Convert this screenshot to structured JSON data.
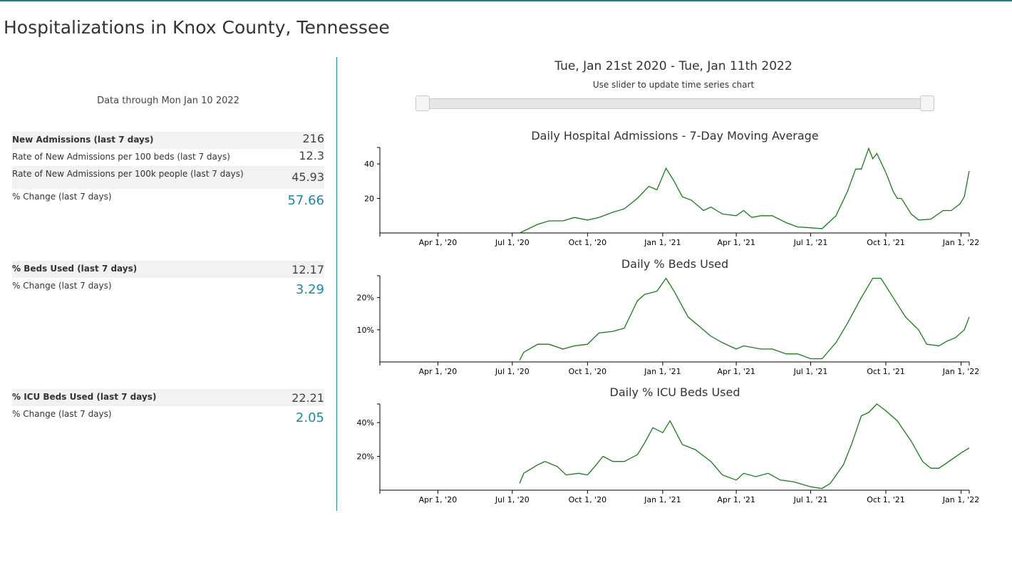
{
  "title": "Hospitalizations in Knox County, Tennessee",
  "data_through": "Data through Mon Jan 10 2022",
  "admissions": {
    "rows": [
      {
        "label": "New Admissions (last 7 days)",
        "value": "216"
      },
      {
        "label": "Rate of New Admissions per 100 beds (last 7 days)",
        "value": "12.3"
      },
      {
        "label": "Rate of New Admissions per 100k people (last 7 days)",
        "value": "45.93"
      },
      {
        "label": "% Change (last 7 days)",
        "value": "57.66"
      }
    ]
  },
  "beds": {
    "rows": [
      {
        "label": "% Beds Used (last 7 days)",
        "value": "12.17"
      },
      {
        "label": "% Change (last 7 days)",
        "value": "3.29"
      }
    ]
  },
  "icu": {
    "rows": [
      {
        "label": "% ICU Beds Used (last 7 days)",
        "value": "22.21"
      },
      {
        "label": "% Change (last 7 days)",
        "value": "2.05"
      }
    ]
  },
  "slider": {
    "range_label": "Tue, Jan 21st 2020 - Tue, Jan 11th 2022",
    "hint": "Use slider to update time series chart",
    "start": "2020-01-21",
    "end": "2022-01-11"
  },
  "colors": {
    "line": "#1a7a1a",
    "accent": "#1a8aa0"
  },
  "chart_data": [
    {
      "type": "line",
      "title": "Daily Hospital Admissions - 7-Day Moving Average",
      "ylim": [
        0,
        49.5
      ],
      "yticks": [
        {
          "v": 20,
          "label": "20"
        },
        {
          "v": 40,
          "label": "40"
        }
      ],
      "xticks": [
        {
          "d": "2020-04-01",
          "label": "Apr 1, '20"
        },
        {
          "d": "2020-07-01",
          "label": "Jul 1, '20"
        },
        {
          "d": "2020-10-01",
          "label": "Oct 1, '20"
        },
        {
          "d": "2021-01-01",
          "label": "Jan 1, '21"
        },
        {
          "d": "2021-04-01",
          "label": "Apr 1, '21"
        },
        {
          "d": "2021-07-01",
          "label": "Jul 1, '21"
        },
        {
          "d": "2021-10-01",
          "label": "Oct 1, '21"
        },
        {
          "d": "2022-01-01",
          "label": "Jan 1, '22"
        }
      ],
      "points": [
        [
          "2020-07-10",
          0
        ],
        [
          "2020-08-01",
          5
        ],
        [
          "2020-08-15",
          7
        ],
        [
          "2020-09-01",
          7
        ],
        [
          "2020-09-15",
          9
        ],
        [
          "2020-10-01",
          7.5
        ],
        [
          "2020-10-15",
          9
        ],
        [
          "2020-11-01",
          12
        ],
        [
          "2020-11-15",
          14
        ],
        [
          "2020-12-01",
          20
        ],
        [
          "2020-12-15",
          27
        ],
        [
          "2020-12-25",
          25
        ],
        [
          "2021-01-05",
          37.5
        ],
        [
          "2021-01-15",
          30
        ],
        [
          "2021-01-25",
          21
        ],
        [
          "2021-02-05",
          19
        ],
        [
          "2021-02-20",
          13
        ],
        [
          "2021-03-01",
          15
        ],
        [
          "2021-03-15",
          11
        ],
        [
          "2021-04-01",
          10
        ],
        [
          "2021-04-10",
          13
        ],
        [
          "2021-04-20",
          9
        ],
        [
          "2021-05-01",
          10
        ],
        [
          "2021-05-15",
          10
        ],
        [
          "2021-06-01",
          6
        ],
        [
          "2021-06-15",
          3.5
        ],
        [
          "2021-07-01",
          3
        ],
        [
          "2021-07-15",
          2.5
        ],
        [
          "2021-08-01",
          10
        ],
        [
          "2021-08-15",
          24
        ],
        [
          "2021-08-25",
          37
        ],
        [
          "2021-09-01",
          37
        ],
        [
          "2021-09-10",
          49
        ],
        [
          "2021-09-15",
          43
        ],
        [
          "2021-09-20",
          46
        ],
        [
          "2021-10-01",
          35
        ],
        [
          "2021-10-10",
          24
        ],
        [
          "2021-10-15",
          20
        ],
        [
          "2021-10-20",
          20
        ],
        [
          "2021-11-01",
          11
        ],
        [
          "2021-11-10",
          7.5
        ],
        [
          "2021-11-25",
          8
        ],
        [
          "2021-12-10",
          13
        ],
        [
          "2021-12-20",
          13
        ],
        [
          "2021-12-31",
          17
        ],
        [
          "2022-01-05",
          21
        ],
        [
          "2022-01-11",
          36
        ]
      ]
    },
    {
      "type": "line",
      "title": "Daily % Beds Used",
      "ylim": [
        0,
        26.8
      ],
      "yticks": [
        {
          "v": 10,
          "label": "10%"
        },
        {
          "v": 20,
          "label": "20%"
        }
      ],
      "xticks": [
        {
          "d": "2020-04-01",
          "label": "Apr 1, '20"
        },
        {
          "d": "2020-07-01",
          "label": "Jul 1, '20"
        },
        {
          "d": "2020-10-01",
          "label": "Oct 1, '20"
        },
        {
          "d": "2021-01-01",
          "label": "Jan 1, '21"
        },
        {
          "d": "2021-04-01",
          "label": "Apr 1, '21"
        },
        {
          "d": "2021-07-01",
          "label": "Jul 1, '21"
        },
        {
          "d": "2021-10-01",
          "label": "Oct 1, '21"
        },
        {
          "d": "2022-01-01",
          "label": "Jan 1, '22"
        }
      ],
      "points": [
        [
          "2020-07-10",
          0.5
        ],
        [
          "2020-07-15",
          3
        ],
        [
          "2020-08-01",
          5.5
        ],
        [
          "2020-08-15",
          5.5
        ],
        [
          "2020-09-01",
          4
        ],
        [
          "2020-09-15",
          5
        ],
        [
          "2020-10-01",
          5.5
        ],
        [
          "2020-10-15",
          9
        ],
        [
          "2020-11-01",
          9.5
        ],
        [
          "2020-11-15",
          10.5
        ],
        [
          "2020-12-01",
          19
        ],
        [
          "2020-12-10",
          21
        ],
        [
          "2020-12-25",
          22
        ],
        [
          "2021-01-05",
          26
        ],
        [
          "2021-01-15",
          22
        ],
        [
          "2021-02-01",
          14
        ],
        [
          "2021-02-15",
          11
        ],
        [
          "2021-03-01",
          8
        ],
        [
          "2021-03-15",
          6
        ],
        [
          "2021-04-01",
          4
        ],
        [
          "2021-04-10",
          5
        ],
        [
          "2021-05-01",
          4
        ],
        [
          "2021-05-15",
          4
        ],
        [
          "2021-06-01",
          2.5
        ],
        [
          "2021-06-15",
          2.5
        ],
        [
          "2021-07-01",
          1
        ],
        [
          "2021-07-15",
          1
        ],
        [
          "2021-08-01",
          6
        ],
        [
          "2021-08-15",
          12
        ],
        [
          "2021-09-01",
          20
        ],
        [
          "2021-09-15",
          26
        ],
        [
          "2021-09-25",
          26
        ],
        [
          "2021-10-10",
          20
        ],
        [
          "2021-10-25",
          14
        ],
        [
          "2021-11-10",
          10
        ],
        [
          "2021-11-20",
          5.5
        ],
        [
          "2021-12-05",
          5
        ],
        [
          "2021-12-15",
          6.5
        ],
        [
          "2021-12-25",
          7.5
        ],
        [
          "2022-01-05",
          10
        ],
        [
          "2022-01-11",
          14
        ]
      ]
    },
    {
      "type": "line",
      "title": "Daily % ICU Beds Used",
      "ylim": [
        0,
        51
      ],
      "yticks": [
        {
          "v": 20,
          "label": "20%"
        },
        {
          "v": 40,
          "label": "40%"
        }
      ],
      "xticks": [
        {
          "d": "2020-04-01",
          "label": "Apr 1, '20"
        },
        {
          "d": "2020-07-01",
          "label": "Jul 1, '20"
        },
        {
          "d": "2020-10-01",
          "label": "Oct 1, '20"
        },
        {
          "d": "2021-01-01",
          "label": "Jan 1, '21"
        },
        {
          "d": "2021-04-01",
          "label": "Apr 1, '21"
        },
        {
          "d": "2021-07-01",
          "label": "Jul 1, '21"
        },
        {
          "d": "2021-10-01",
          "label": "Oct 1, '21"
        },
        {
          "d": "2022-01-01",
          "label": "Jan 1, '22"
        }
      ],
      "points": [
        [
          "2020-07-10",
          4
        ],
        [
          "2020-07-15",
          10
        ],
        [
          "2020-08-01",
          15
        ],
        [
          "2020-08-10",
          17
        ],
        [
          "2020-08-25",
          14
        ],
        [
          "2020-09-05",
          9
        ],
        [
          "2020-09-20",
          10
        ],
        [
          "2020-10-01",
          9
        ],
        [
          "2020-10-10",
          14
        ],
        [
          "2020-10-20",
          20
        ],
        [
          "2020-11-01",
          17
        ],
        [
          "2020-11-15",
          17
        ],
        [
          "2020-12-01",
          21
        ],
        [
          "2020-12-10",
          28
        ],
        [
          "2020-12-20",
          37
        ],
        [
          "2021-01-01",
          34
        ],
        [
          "2021-01-10",
          41
        ],
        [
          "2021-01-25",
          27
        ],
        [
          "2021-02-10",
          24
        ],
        [
          "2021-03-01",
          17
        ],
        [
          "2021-03-15",
          9
        ],
        [
          "2021-04-01",
          6
        ],
        [
          "2021-04-10",
          10
        ],
        [
          "2021-04-25",
          8
        ],
        [
          "2021-05-10",
          10
        ],
        [
          "2021-05-25",
          6
        ],
        [
          "2021-06-10",
          5
        ],
        [
          "2021-07-01",
          2
        ],
        [
          "2021-07-15",
          1
        ],
        [
          "2021-07-25",
          4
        ],
        [
          "2021-08-10",
          15
        ],
        [
          "2021-08-20",
          27
        ],
        [
          "2021-09-01",
          44
        ],
        [
          "2021-09-10",
          46
        ],
        [
          "2021-09-20",
          51
        ],
        [
          "2021-10-01",
          47
        ],
        [
          "2021-10-15",
          41
        ],
        [
          "2021-11-01",
          29
        ],
        [
          "2021-11-15",
          17
        ],
        [
          "2021-11-25",
          13
        ],
        [
          "2021-12-05",
          13
        ],
        [
          "2021-12-20",
          18
        ],
        [
          "2022-01-01",
          22
        ],
        [
          "2022-01-11",
          25
        ]
      ]
    }
  ]
}
